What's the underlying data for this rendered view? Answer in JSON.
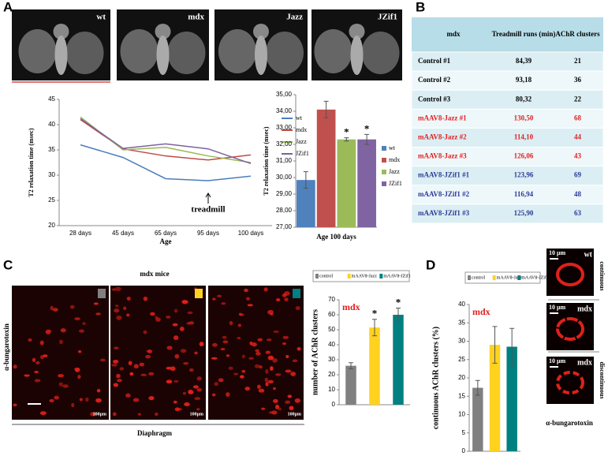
{
  "panel_labels": [
    "A",
    "B",
    "C",
    "D"
  ],
  "panel_a_images": [
    "wt",
    "mdx",
    "Jazz",
    "JZif1"
  ],
  "table": {
    "header": [
      "mdx",
      "Treadmill runs (min)",
      "AChR clusters"
    ],
    "rows": [
      {
        "color": "#000000",
        "cells": [
          "Control #1",
          "84,39",
          "21"
        ]
      },
      {
        "color": "#000000",
        "cells": [
          "Control #2",
          "93,18",
          "36"
        ]
      },
      {
        "color": "#000000",
        "cells": [
          "Control #3",
          "80,32",
          "22"
        ]
      },
      {
        "color": "#e02020",
        "cells": [
          "mAAV8-Jazz #1",
          "130,50",
          "68"
        ]
      },
      {
        "color": "#e02020",
        "cells": [
          "mAAV8-Jazz #2",
          "114,10",
          "44"
        ]
      },
      {
        "color": "#e02020",
        "cells": [
          "mAAV8-Jazz #3",
          "126,06",
          "43"
        ]
      },
      {
        "color": "#2b3b99",
        "cells": [
          "mAAV8-JZif1 #1",
          "123,96",
          "69"
        ]
      },
      {
        "color": "#2b3b99",
        "cells": [
          "mAAV8-JZif1 #2",
          "116,94",
          "48"
        ]
      },
      {
        "color": "#2b3b99",
        "cells": [
          "mAAV8-JZif1 #3",
          "125,90",
          "63"
        ]
      }
    ]
  },
  "panel_c": {
    "title": "mdx mice",
    "side_label": "α-bungarotoxin",
    "scale_labels": [
      "100μm",
      "100μm",
      "100μm"
    ],
    "bottom_label": "Diaphragm"
  },
  "panel_d": {
    "scale_labels": [
      "10 μm",
      "10 μm",
      "10 μm"
    ],
    "image_labels": [
      "wt",
      "mdx",
      "mdx"
    ],
    "side_labels": [
      "continuous",
      "discontinuous"
    ],
    "bottom_label": "α-bungarotoxin"
  },
  "chart_data": [
    {
      "type": "line",
      "y_label": "T2 relaxation time  (msec)",
      "x_label": "Age",
      "annotation": "treadmill",
      "legend": "right",
      "categories": [
        "28 days",
        "45 days",
        "65 days",
        "95 days",
        "100 days"
      ],
      "ylim": [
        20,
        45
      ],
      "yticks": [
        20,
        25,
        30,
        35,
        40,
        45
      ],
      "series": [
        {
          "name": "wt",
          "color": "#4a7ebb",
          "values": [
            36,
            33.5,
            29.3,
            28.9,
            29.8
          ]
        },
        {
          "name": "mdx",
          "color": "#be4b48",
          "values": [
            41,
            35.2,
            33.8,
            33,
            34
          ]
        },
        {
          "name": "Jazz",
          "color": "#98b954",
          "values": [
            41.5,
            35,
            35.5,
            33.8,
            32.5
          ]
        },
        {
          "name": "JZif1",
          "color": "#7d60a0",
          "values": [
            41.2,
            35.3,
            36.2,
            35.2,
            32.3
          ]
        }
      ]
    },
    {
      "type": "bar",
      "y_label": "T2 relaxation time  (msec)",
      "x_label": "Age 100 days",
      "legend": "right",
      "ylim": [
        27,
        35
      ],
      "yticks": [
        {
          "value": 27,
          "label": "27,00"
        },
        {
          "value": 28,
          "label": "28,00"
        },
        {
          "value": 29,
          "label": "29,00"
        },
        {
          "value": 30,
          "label": "30,00"
        },
        {
          "value": 31,
          "label": "31,00"
        },
        {
          "value": 32,
          "label": "32,00"
        },
        {
          "value": 33,
          "label": "33,00"
        },
        {
          "value": 34,
          "label": "34,00"
        },
        {
          "value": 35,
          "label": "35,00"
        }
      ],
      "series": [
        {
          "name": "wt",
          "color": "#4f81bd",
          "values": [
            29.85
          ],
          "errors": [
            0.5
          ]
        },
        {
          "name": "mdx",
          "color": "#c0504d",
          "values": [
            34.1
          ],
          "errors": [
            0.5
          ]
        },
        {
          "name": "Jazz",
          "color": "#9bbb59",
          "values": [
            32.3
          ],
          "errors": [
            0.1
          ],
          "marker": "*"
        },
        {
          "name": "JZif1",
          "color": "#8064a2",
          "values": [
            32.3
          ],
          "errors": [
            0.3
          ],
          "marker": "*"
        }
      ]
    },
    {
      "type": "bar",
      "y_label": "number of AChR clusters",
      "annotation": "mdx",
      "legend": "top",
      "ylim": [
        0,
        70
      ],
      "yticks": [
        0,
        10,
        20,
        30,
        40,
        50,
        60,
        70
      ],
      "series": [
        {
          "name": "control",
          "color": "#808080",
          "values": [
            26
          ],
          "errors": [
            2
          ]
        },
        {
          "name": "mAAV8-Jazz",
          "color": "#ffd21f",
          "values": [
            51.5
          ],
          "errors": [
            5.5
          ],
          "marker": "*"
        },
        {
          "name": "mAAV8-JZif1",
          "color": "#008080",
          "values": [
            60
          ],
          "errors": [
            4.5
          ],
          "marker": "*"
        }
      ]
    },
    {
      "type": "bar",
      "y_label": "continuous AChR clusters (%)",
      "annotation": "mdx",
      "legend": "top",
      "ylim": [
        0,
        40
      ],
      "yticks": [
        0,
        5,
        10,
        15,
        20,
        25,
        30,
        35,
        40
      ],
      "series": [
        {
          "name": "control",
          "color": "#808080",
          "values": [
            17.3
          ],
          "errors": [
            2
          ]
        },
        {
          "name": "mAAV8-Jazz",
          "color": "#ffd21f",
          "values": [
            29
          ],
          "errors": [
            5
          ]
        },
        {
          "name": "mAAV8-JZif1",
          "color": "#008080",
          "values": [
            28.5
          ],
          "errors": [
            5
          ]
        }
      ]
    }
  ]
}
